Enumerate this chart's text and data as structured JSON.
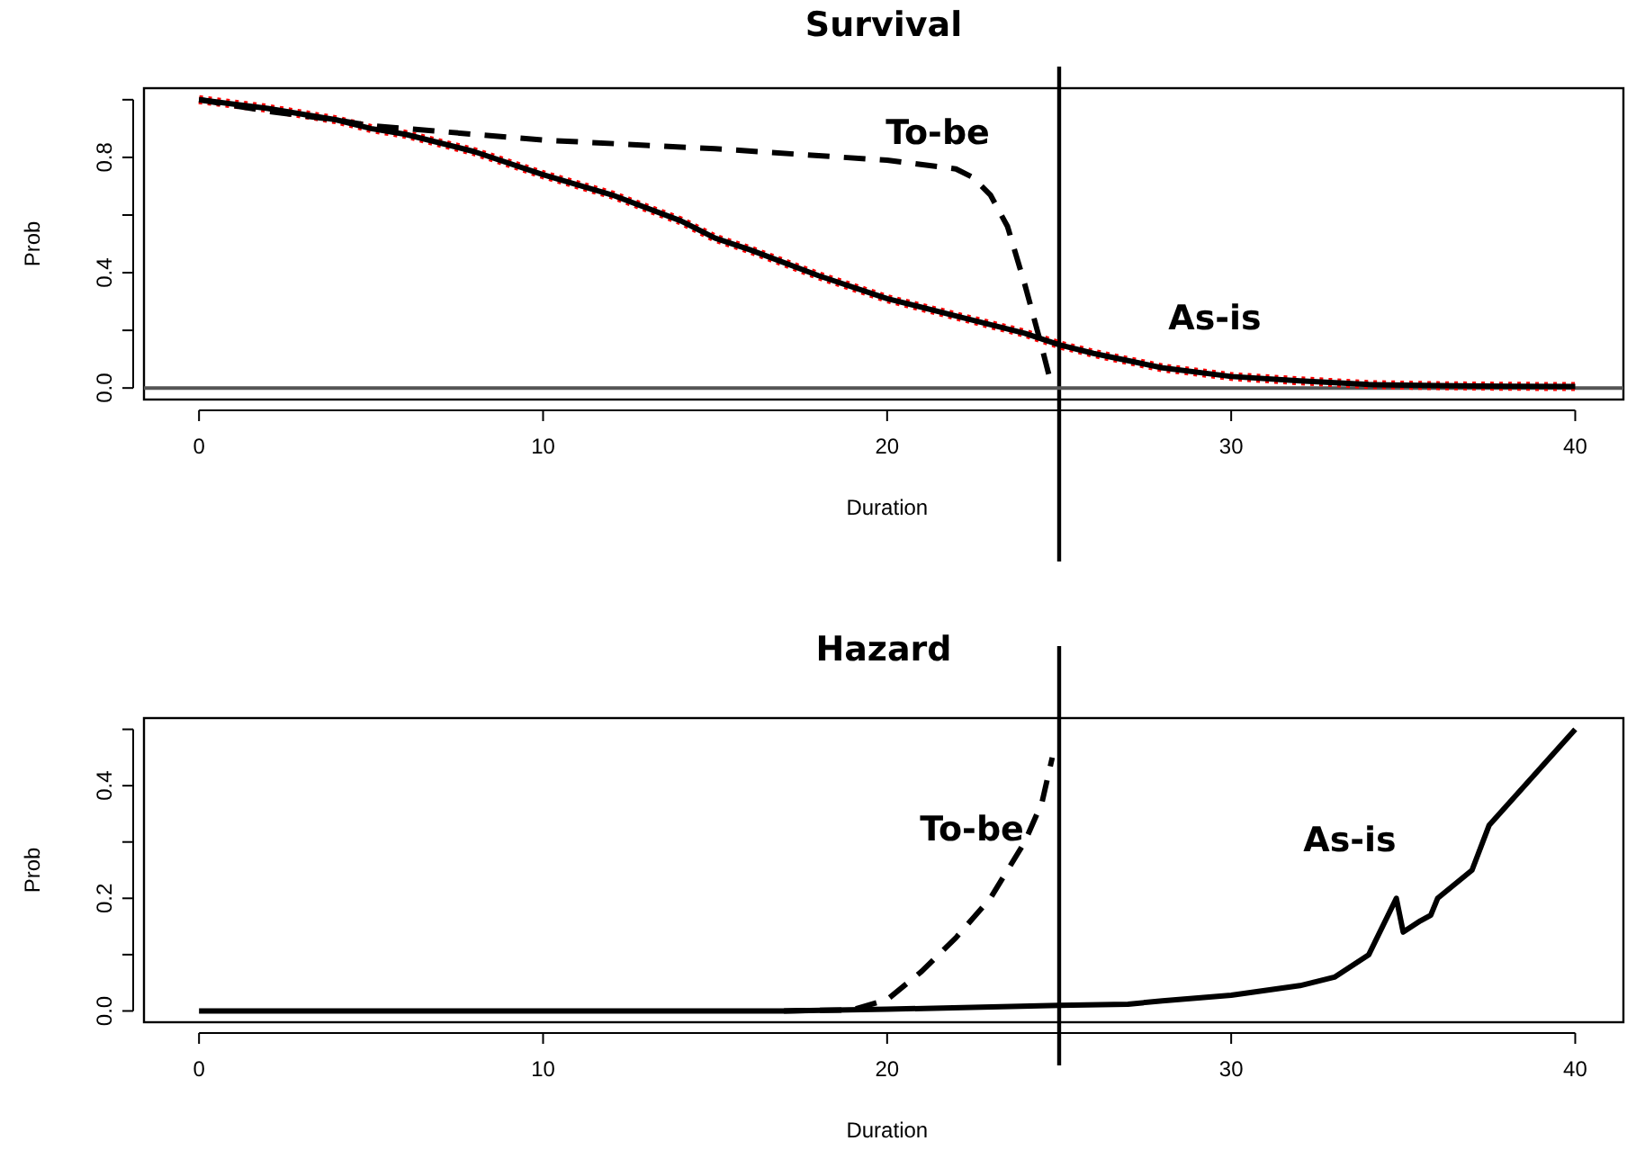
{
  "chart_data": [
    {
      "type": "line",
      "title": "Survival",
      "xlabel": "Duration",
      "ylabel": "Prob",
      "xlim": [
        -1.6,
        41.4
      ],
      "ylim": [
        -0.04,
        1.04
      ],
      "xticks": [
        0,
        10,
        20,
        30,
        40
      ],
      "yticks": [
        {
          "value": 0,
          "label": "0.0"
        },
        {
          "value": 0.2,
          "label": null
        },
        {
          "value": 0.4,
          "label": "0.4"
        },
        {
          "value": 0.6,
          "label": null
        },
        {
          "value": 0.8,
          "label": "0.8"
        },
        {
          "value": 1.0,
          "label": null
        }
      ],
      "grid": false,
      "series": [
        {
          "color": "#ff0000",
          "line_style": "dotted",
          "x": [
            0,
            2,
            4,
            5,
            6,
            8,
            10,
            12,
            14,
            15,
            16,
            18,
            20,
            22,
            24,
            25,
            26,
            28,
            30,
            32,
            34,
            36,
            38,
            40
          ],
          "values": [
            1.0,
            0.97,
            0.93,
            0.9,
            0.88,
            0.82,
            0.74,
            0.67,
            0.58,
            0.52,
            0.48,
            0.39,
            0.31,
            0.25,
            0.19,
            0.15,
            0.12,
            0.07,
            0.04,
            0.025,
            0.012,
            0.008,
            0.006,
            0.005
          ]
        },
        {
          "name": "As-is",
          "color": "#000000",
          "line_style": "solid",
          "x": [
            0,
            2,
            4,
            5,
            6,
            8,
            10,
            12,
            14,
            15,
            16,
            18,
            20,
            22,
            24,
            25,
            26,
            28,
            30,
            32,
            34,
            36,
            38,
            40
          ],
          "values": [
            1.0,
            0.97,
            0.93,
            0.9,
            0.88,
            0.82,
            0.74,
            0.67,
            0.58,
            0.52,
            0.48,
            0.39,
            0.31,
            0.25,
            0.19,
            0.15,
            0.12,
            0.07,
            0.04,
            0.025,
            0.012,
            0.008,
            0.006,
            0.005
          ]
        },
        {
          "name": "To-be",
          "color": "#000000",
          "line_style": "dashed",
          "x": [
            0,
            2,
            4,
            5,
            10,
            15,
            20,
            22,
            22.5,
            23,
            23.5,
            24,
            24.5,
            24.8
          ],
          "values": [
            1.0,
            0.96,
            0.93,
            0.91,
            0.86,
            0.83,
            0.79,
            0.76,
            0.73,
            0.67,
            0.56,
            0.36,
            0.14,
            0.0
          ]
        }
      ],
      "ref_lines": [
        {
          "axis": "x",
          "value": 25,
          "color": "#000000"
        },
        {
          "axis": "y",
          "value": 0,
          "color": "#555555"
        }
      ]
    },
    {
      "type": "line",
      "title": "Hazard",
      "xlabel": "Duration",
      "ylabel": "Prob",
      "xlim": [
        -1.6,
        41.4
      ],
      "ylim": [
        -0.02,
        0.52
      ],
      "xticks": [
        0,
        10,
        20,
        30,
        40
      ],
      "yticks": [
        {
          "value": 0,
          "label": "0.0"
        },
        {
          "value": 0.1,
          "label": null
        },
        {
          "value": 0.2,
          "label": "0.2"
        },
        {
          "value": 0.3,
          "label": null
        },
        {
          "value": 0.4,
          "label": "0.4"
        },
        {
          "value": 0.5,
          "label": null
        }
      ],
      "grid": false,
      "series": [
        {
          "name": "As-is",
          "color": "#000000",
          "line_style": "solid",
          "x": [
            0,
            10,
            17,
            20,
            25,
            27,
            28,
            30,
            32,
            33,
            34,
            34.8,
            35,
            35.5,
            35.8,
            36,
            37,
            37.5,
            40
          ],
          "values": [
            0.0,
            0.0,
            0.0,
            0.003,
            0.01,
            0.012,
            0.018,
            0.028,
            0.045,
            0.06,
            0.1,
            0.2,
            0.14,
            0.16,
            0.17,
            0.2,
            0.25,
            0.33,
            0.5
          ]
        },
        {
          "name": "To-be",
          "color": "#000000",
          "line_style": "dashed",
          "x": [
            17,
            19,
            20,
            21,
            22,
            23,
            24,
            24.5,
            24.8
          ],
          "values": [
            0.0,
            0.002,
            0.02,
            0.07,
            0.13,
            0.2,
            0.3,
            0.37,
            0.45
          ]
        }
      ],
      "ref_lines": [
        {
          "axis": "x",
          "value": 25,
          "color": "#000000"
        }
      ]
    }
  ]
}
